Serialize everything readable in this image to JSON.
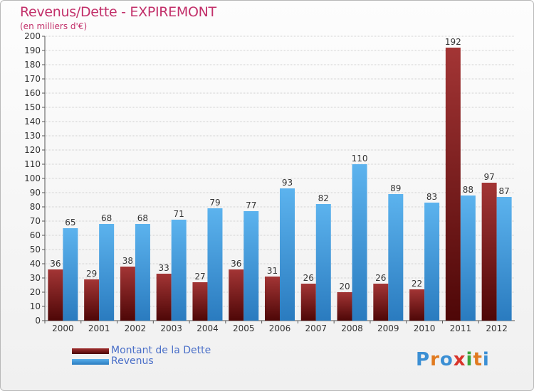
{
  "header": {
    "title": "Revenus/Dette - EXPIREMONT",
    "subtitle": "(en milliers d'€)"
  },
  "legend": [
    {
      "label": "Montant de la Dette",
      "color": "#7a1a1a"
    },
    {
      "label": "Revenus",
      "color": "#3a95da"
    }
  ],
  "logo": {
    "text": "Proxiti",
    "colors": [
      "#3b8fd4",
      "#e07a1f",
      "#3b8fd4",
      "#d8342a",
      "#3aa53a",
      "#e07a1f",
      "#3b8fd4"
    ]
  },
  "chart_data": {
    "type": "bar",
    "categories": [
      "2000",
      "2001",
      "2002",
      "2003",
      "2004",
      "2005",
      "2006",
      "2007",
      "2008",
      "2009",
      "2010",
      "2011",
      "2012"
    ],
    "series": [
      {
        "name": "Montant de la Dette",
        "values": [
          36,
          29,
          38,
          33,
          27,
          36,
          31,
          26,
          20,
          26,
          22,
          192,
          97
        ]
      },
      {
        "name": "Revenus",
        "values": [
          65,
          68,
          68,
          71,
          79,
          77,
          93,
          82,
          110,
          89,
          83,
          88,
          87
        ]
      }
    ],
    "title": "Revenus/Dette - EXPIREMONT",
    "ylabel": "(en milliers d'€)",
    "ylim": [
      0,
      200
    ],
    "ytick_step": 10,
    "grid": true,
    "legend_position": "bottom-left"
  }
}
